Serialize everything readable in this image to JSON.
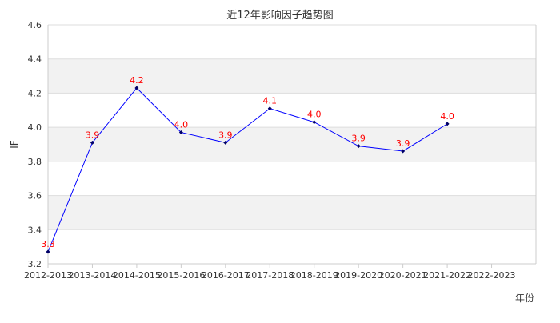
{
  "chart_data": {
    "type": "line",
    "title": "近12年影响因子趋势图",
    "xlabel": "年份",
    "ylabel": "IF",
    "categories": [
      "2012-2013",
      "2013-2014",
      "2014-2015",
      "2015-2016",
      "2016-2017",
      "2017-2018",
      "2018-2019",
      "2019-2020",
      "2020-2021",
      "2021-2022",
      "2022-2023"
    ],
    "series": [
      {
        "values": [
          3.27,
          3.91,
          4.23,
          3.97,
          3.91,
          4.11,
          4.03,
          3.89,
          3.86,
          4.02,
          null
        ],
        "labels": [
          "3.3",
          "3.9",
          "4.2",
          "4.0",
          "3.9",
          "4.1",
          "4.0",
          "3.9",
          "3.9",
          "4.0",
          null
        ]
      }
    ],
    "ylim": [
      3.2,
      4.6
    ],
    "yticks": [
      "3.2",
      "3.4",
      "3.6",
      "3.8",
      "4.0",
      "4.2",
      "4.4",
      "4.6"
    ],
    "grid": true,
    "colors": {
      "line": "#0000ff",
      "marker": "#000066",
      "label": "#ff0000",
      "band": "#f2f2f2",
      "grid": "#dddddd",
      "axis": "#cccccc",
      "text": "#333333"
    }
  }
}
